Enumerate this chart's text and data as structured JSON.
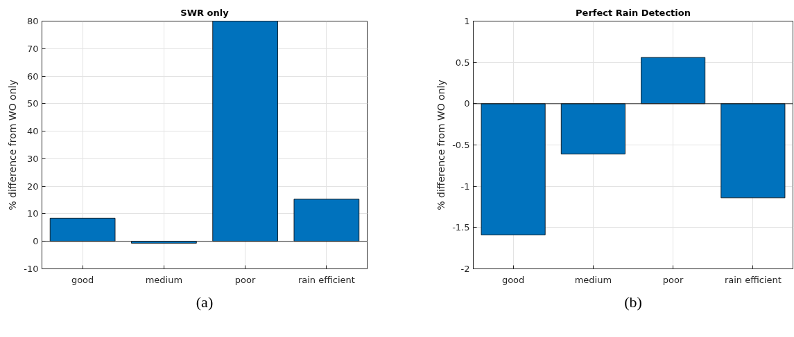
{
  "chart_data": [
    {
      "type": "bar",
      "title": "SWR only",
      "ylabel": "% difference from WO only",
      "categories": [
        "good",
        "medium",
        "poor",
        "rain efficient"
      ],
      "values": [
        8.4,
        -0.7,
        80,
        15.3
      ],
      "color": "#0072bd",
      "ylim": [
        -10,
        80
      ],
      "yticks": [
        -10,
        0,
        10,
        20,
        30,
        40,
        50,
        60,
        70,
        80
      ],
      "grid": true,
      "ref_lines": [
        {
          "axis": "y",
          "value": 0,
          "color": "#262626"
        }
      ],
      "annotations": [
        "(a)"
      ]
    },
    {
      "type": "bar",
      "title": "Perfect Rain Detection",
      "ylabel": "% difference from WO only",
      "categories": [
        "good",
        "medium",
        "poor",
        "rain efficient"
      ],
      "values": [
        -1.59,
        -0.61,
        0.56,
        -1.14
      ],
      "color": "#0072bd",
      "ylim": [
        -2,
        1
      ],
      "yticks": [
        -2,
        -1.5,
        -1,
        -0.5,
        0,
        0.5,
        1
      ],
      "grid": true,
      "ref_lines": [
        {
          "axis": "y",
          "value": 0,
          "color": "#262626"
        }
      ],
      "annotations": [
        "(b)"
      ]
    }
  ]
}
